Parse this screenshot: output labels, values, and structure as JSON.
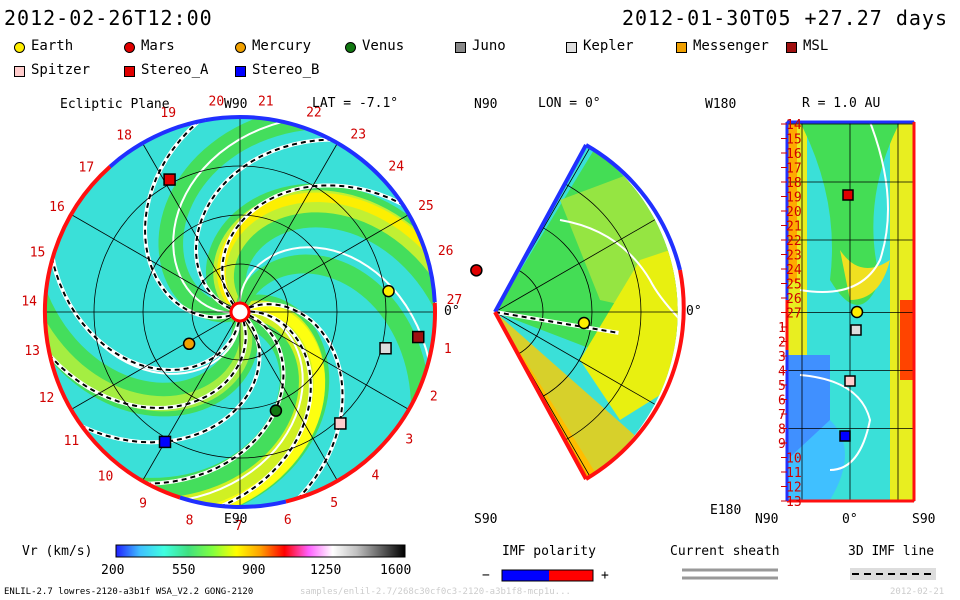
{
  "header": {
    "left_time": "2012-02-26T12:00",
    "right_time": "2012-01-30T05 +27.27 days"
  },
  "legend": [
    {
      "name": "Earth",
      "color": "#ffee00",
      "shape": "circle"
    },
    {
      "name": "Mars",
      "color": "#e00000",
      "shape": "circle"
    },
    {
      "name": "Mercury",
      "color": "#f0a000",
      "shape": "circle"
    },
    {
      "name": "Venus",
      "color": "#117711",
      "shape": "circle"
    },
    {
      "name": "Juno",
      "color": "#888888",
      "shape": "square"
    },
    {
      "name": "Kepler",
      "color": "#dddddd",
      "shape": "square"
    },
    {
      "name": "Messenger",
      "color": "#f0a000",
      "shape": "square"
    },
    {
      "name": "MSL",
      "color": "#a01010",
      "shape": "square"
    },
    {
      "name": "Spitzer",
      "color": "#ffcccc",
      "shape": "square"
    },
    {
      "name": "Stereo_A",
      "color": "#e00000",
      "shape": "square"
    },
    {
      "name": "Stereo_B",
      "color": "#0000ff",
      "shape": "square"
    }
  ],
  "ecliptic": {
    "title": "Ecliptic Plane",
    "lat_label": "LAT = -7.1°",
    "top_label": "W90",
    "bottom_label": "E90",
    "right_label": "0°",
    "carrington_ticks": [
      "20",
      "21",
      "22",
      "23",
      "24",
      "25",
      "26",
      "27",
      "1",
      "2",
      "3",
      "4",
      "5",
      "6",
      "7",
      "8",
      "9",
      "10",
      "11",
      "12",
      "13",
      "14",
      "15",
      "16",
      "17",
      "18",
      "19"
    ]
  },
  "meridional": {
    "top_left": "N90",
    "title": "LON = 0°",
    "bottom_left": "S90",
    "right_label": "0°"
  },
  "radial": {
    "title": "R = 1.0 AU",
    "top_left": "W180",
    "bottom_left": "E180",
    "bottom_labels": [
      "N90",
      "0°",
      "S90"
    ],
    "rows": [
      "14",
      "15",
      "16",
      "17",
      "18",
      "19",
      "20",
      "21",
      "22",
      "23",
      "24",
      "25",
      "26",
      "27",
      "1",
      "2",
      "3",
      "4",
      "5",
      "6",
      "7",
      "8",
      "9",
      "10",
      "11",
      "12",
      "13"
    ]
  },
  "colorbar": {
    "label": "Vr (km/s)",
    "ticks": [
      "200",
      "550",
      "900",
      "1250",
      "1600"
    ],
    "min": 200,
    "max": 1600,
    "stops": [
      "#2020ff",
      "#40c0ff",
      "#40ffe0",
      "#40e080",
      "#80ff40",
      "#ffff00",
      "#ffa000",
      "#ff0000",
      "#ff60ff",
      "#ffffff",
      "#c0c0c0",
      "#606060",
      "#000000"
    ]
  },
  "imf": {
    "title": "IMF polarity",
    "neg": "−",
    "pos": "+",
    "neg_color": "#0000ff",
    "pos_color": "#ff0000"
  },
  "current_sheath": {
    "title": "Current sheath"
  },
  "imf_line": {
    "title": "3D IMF line"
  },
  "footer": {
    "left": "ENLIL-2.7 lowres-2120-a3b1f WSA_V2.2 GONG-2120",
    "mid": "samples/enlil-2.7/268c30cf0c3-2120-a3b1f8-mcp1u...",
    "right": "2012-02-21"
  },
  "chart_data": [
    {
      "type": "heatmap",
      "title": "Ecliptic Plane",
      "quantity": "Vr (km/s)",
      "range": [
        200,
        1600
      ],
      "bodies": [
        {
          "name": "Earth",
          "lon_deg": 8,
          "r_au": 1.0
        },
        {
          "name": "Mars",
          "lon_deg": 10,
          "r_au": 1.6
        },
        {
          "name": "Mercury",
          "lon_deg": 212,
          "r_au": 0.4
        },
        {
          "name": "Venus",
          "lon_deg": 290,
          "r_au": 0.7
        },
        {
          "name": "Kepler",
          "lon_deg": 346,
          "r_au": 1.0
        },
        {
          "name": "MSL",
          "lon_deg": 352,
          "r_au": 1.2
        },
        {
          "name": "Spitzer",
          "lon_deg": 312,
          "r_au": 1.0
        },
        {
          "name": "Stereo_A",
          "lon_deg": 118,
          "r_au": 1.0
        },
        {
          "name": "Stereo_B",
          "lon_deg": 240,
          "r_au": 1.0
        }
      ]
    },
    {
      "type": "heatmap",
      "title": "LON = 0°",
      "lat_range": [
        -90,
        90
      ]
    },
    {
      "type": "heatmap",
      "title": "R = 1.0 AU",
      "lat_range": [
        -90,
        90
      ],
      "lon_range": [
        -180,
        180
      ]
    }
  ]
}
